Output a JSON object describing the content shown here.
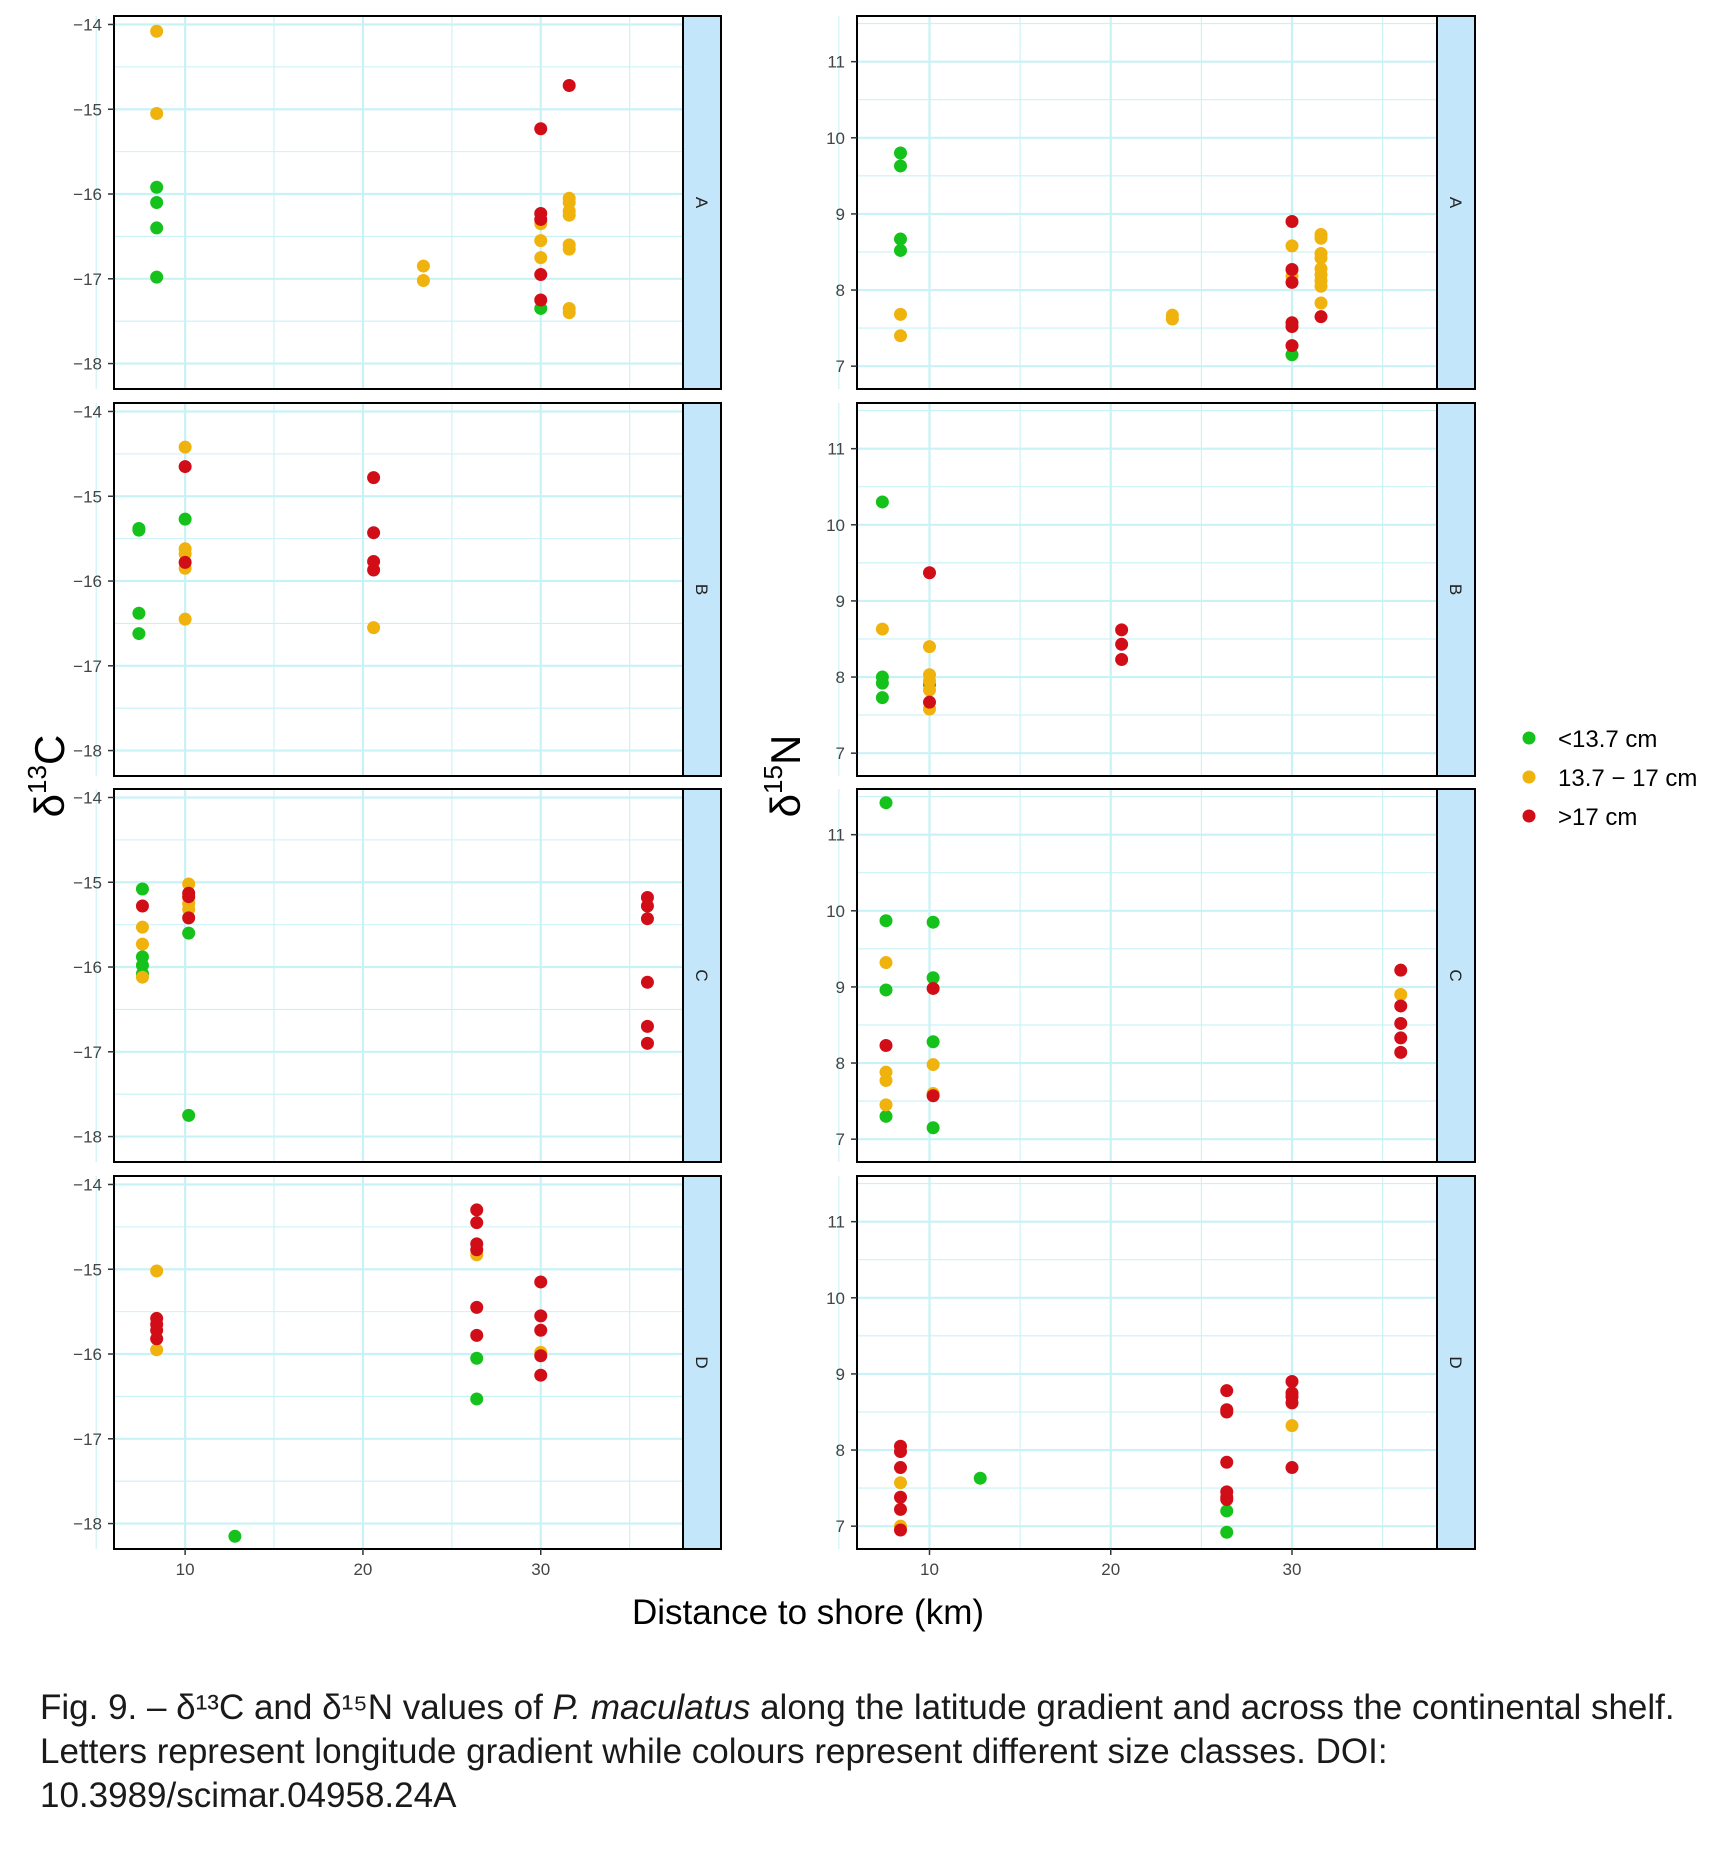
{
  "chart_data": {
    "type": "scatter",
    "xlabel": "Distance to shore (km)",
    "xlim": [
      6,
      38
    ],
    "x_ticks": [
      10,
      20,
      30
    ],
    "grid": true,
    "legend": {
      "placement": "right",
      "entries": [
        {
          "key": "small",
          "label": "<13.7 cm",
          "color": "#15c21b"
        },
        {
          "key": "medium",
          "label": "13.7 − 17 cm",
          "color": "#f0b20d"
        },
        {
          "key": "large",
          "label": ">17 cm",
          "color": "#d10e17"
        }
      ]
    },
    "strip_color": "#c4e6fb",
    "grid_color": "#c9f2f6",
    "columns": [
      {
        "key": "d13c",
        "ylabel_main": "δ",
        "ylabel_sup": "13",
        "ylabel_after": "C",
        "ylim": [
          -18.3,
          -13.9
        ],
        "y_ticks": [
          -14,
          -15,
          -16,
          -17,
          -18
        ],
        "y_tick_labels": [
          "−14",
          "−15",
          "−16",
          "−17",
          "−18"
        ],
        "panels": [
          {
            "label": "A",
            "points": {
              "small": [
                [
                  8.4,
                  -15.92
                ],
                [
                  8.4,
                  -16.1
                ],
                [
                  8.4,
                  -16.4
                ],
                [
                  8.4,
                  -16.98
                ],
                [
                  30,
                  -17.35
                ]
              ],
              "medium": [
                [
                  8.4,
                  -14.08
                ],
                [
                  8.4,
                  -15.05
                ],
                [
                  23.4,
                  -16.85
                ],
                [
                  23.4,
                  -17.02
                ],
                [
                  30,
                  -16.35
                ],
                [
                  30,
                  -16.55
                ],
                [
                  30,
                  -16.75
                ],
                [
                  31.6,
                  -16.05
                ],
                [
                  31.6,
                  -16.1
                ],
                [
                  31.6,
                  -16.2
                ],
                [
                  31.6,
                  -16.25
                ],
                [
                  31.6,
                  -16.6
                ],
                [
                  31.6,
                  -16.65
                ],
                [
                  31.6,
                  -17.35
                ],
                [
                  31.6,
                  -17.4
                ]
              ],
              "large": [
                [
                  31.6,
                  -14.72
                ],
                [
                  30,
                  -15.23
                ],
                [
                  30,
                  -16.23
                ],
                [
                  30,
                  -16.3
                ],
                [
                  30,
                  -16.95
                ],
                [
                  30,
                  -17.25
                ]
              ]
            }
          },
          {
            "label": "B",
            "points": {
              "small": [
                [
                  7.4,
                  -15.38
                ],
                [
                  7.4,
                  -15.4
                ],
                [
                  7.4,
                  -16.38
                ],
                [
                  7.4,
                  -16.62
                ],
                [
                  10,
                  -15.27
                ]
              ],
              "medium": [
                [
                  10,
                  -14.42
                ],
                [
                  10,
                  -15.62
                ],
                [
                  10,
                  -15.68
                ],
                [
                  10,
                  -15.85
                ],
                [
                  10,
                  -16.45
                ],
                [
                  20.6,
                  -16.55
                ]
              ],
              "large": [
                [
                  10,
                  -14.65
                ],
                [
                  10,
                  -15.78
                ],
                [
                  20.6,
                  -14.78
                ],
                [
                  20.6,
                  -15.43
                ],
                [
                  20.6,
                  -15.77
                ],
                [
                  20.6,
                  -15.87
                ]
              ]
            }
          },
          {
            "label": "C",
            "points": {
              "small": [
                [
                  7.6,
                  -15.08
                ],
                [
                  7.6,
                  -15.88
                ],
                [
                  7.6,
                  -15.98
                ],
                [
                  7.6,
                  -16.08
                ],
                [
                  10.2,
                  -15.6
                ],
                [
                  10.2,
                  -17.75
                ]
              ],
              "medium": [
                [
                  7.6,
                  -15.53
                ],
                [
                  7.6,
                  -15.73
                ],
                [
                  7.6,
                  -16.12
                ],
                [
                  10.2,
                  -15.02
                ],
                [
                  10.2,
                  -15.18
                ],
                [
                  10.2,
                  -15.25
                ],
                [
                  10.2,
                  -15.32
                ],
                [
                  36,
                  -16.9
                ]
              ],
              "large": [
                [
                  7.6,
                  -15.28
                ],
                [
                  10.2,
                  -15.13
                ],
                [
                  10.2,
                  -15.17
                ],
                [
                  10.2,
                  -15.42
                ],
                [
                  36,
                  -15.18
                ],
                [
                  36,
                  -15.28
                ],
                [
                  36,
                  -15.43
                ],
                [
                  36,
                  -16.18
                ],
                [
                  36,
                  -16.7
                ],
                [
                  36,
                  -16.9
                ]
              ]
            }
          },
          {
            "label": "D",
            "points": {
              "small": [
                [
                  12.8,
                  -18.15
                ],
                [
                  26.4,
                  -16.05
                ],
                [
                  26.4,
                  -16.53
                ]
              ],
              "medium": [
                [
                  8.4,
                  -15.02
                ],
                [
                  8.4,
                  -15.95
                ],
                [
                  26.4,
                  -14.83
                ],
                [
                  30,
                  -15.98
                ]
              ],
              "large": [
                [
                  8.4,
                  -15.58
                ],
                [
                  8.4,
                  -15.65
                ],
                [
                  8.4,
                  -15.72
                ],
                [
                  8.4,
                  -15.82
                ],
                [
                  26.4,
                  -14.3
                ],
                [
                  26.4,
                  -14.45
                ],
                [
                  26.4,
                  -14.7
                ],
                [
                  26.4,
                  -14.77
                ],
                [
                  26.4,
                  -15.45
                ],
                [
                  26.4,
                  -15.78
                ],
                [
                  30,
                  -15.15
                ],
                [
                  30,
                  -15.55
                ],
                [
                  30,
                  -15.72
                ],
                [
                  30,
                  -16.02
                ],
                [
                  30,
                  -16.25
                ]
              ]
            }
          }
        ]
      },
      {
        "key": "d15n",
        "ylabel_main": "δ",
        "ylabel_sup": "15",
        "ylabel_after": "N",
        "ylim": [
          6.7,
          11.6
        ],
        "y_ticks": [
          7,
          8,
          9,
          10,
          11
        ],
        "y_tick_labels": [
          "7",
          "8",
          "9",
          "10",
          "11"
        ],
        "panels": [
          {
            "label": "A",
            "points": {
              "small": [
                [
                  8.4,
                  9.8
                ],
                [
                  8.4,
                  9.63
                ],
                [
                  8.4,
                  8.67
                ],
                [
                  8.4,
                  8.52
                ],
                [
                  30,
                  7.15
                ]
              ],
              "medium": [
                [
                  8.4,
                  7.68
                ],
                [
                  8.4,
                  7.4
                ],
                [
                  23.4,
                  7.67
                ],
                [
                  23.4,
                  7.62
                ],
                [
                  30,
                  8.58
                ],
                [
                  30,
                  8.18
                ],
                [
                  31.6,
                  8.73
                ],
                [
                  31.6,
                  8.68
                ],
                [
                  31.6,
                  8.48
                ],
                [
                  31.6,
                  8.42
                ],
                [
                  31.6,
                  8.28
                ],
                [
                  31.6,
                  8.2
                ],
                [
                  31.6,
                  8.12
                ],
                [
                  31.6,
                  8.05
                ],
                [
                  31.6,
                  7.83
                ]
              ],
              "large": [
                [
                  30,
                  8.9
                ],
                [
                  30,
                  8.27
                ],
                [
                  30,
                  8.1
                ],
                [
                  30,
                  7.57
                ],
                [
                  30,
                  7.52
                ],
                [
                  30,
                  7.27
                ],
                [
                  31.6,
                  7.65
                ]
              ]
            }
          },
          {
            "label": "B",
            "points": {
              "small": [
                [
                  7.4,
                  10.3
                ],
                [
                  7.4,
                  8.0
                ],
                [
                  7.4,
                  7.92
                ],
                [
                  7.4,
                  7.73
                ],
                [
                  10,
                  7.9
                ]
              ],
              "medium": [
                [
                  7.4,
                  8.63
                ],
                [
                  10,
                  8.4
                ],
                [
                  10,
                  8.03
                ],
                [
                  10,
                  7.95
                ],
                [
                  10,
                  7.83
                ],
                [
                  10,
                  7.58
                ]
              ],
              "large": [
                [
                  10,
                  9.37
                ],
                [
                  10,
                  7.67
                ],
                [
                  20.6,
                  8.62
                ],
                [
                  20.6,
                  8.43
                ],
                [
                  20.6,
                  8.23
                ]
              ]
            }
          },
          {
            "label": "C",
            "points": {
              "small": [
                [
                  7.6,
                  11.42
                ],
                [
                  7.6,
                  9.87
                ],
                [
                  7.6,
                  8.96
                ],
                [
                  7.6,
                  7.3
                ],
                [
                  10.2,
                  9.85
                ],
                [
                  10.2,
                  9.12
                ],
                [
                  10.2,
                  8.28
                ],
                [
                  10.2,
                  7.15
                ]
              ],
              "medium": [
                [
                  7.6,
                  9.32
                ],
                [
                  7.6,
                  7.88
                ],
                [
                  7.6,
                  7.77
                ],
                [
                  7.6,
                  7.45
                ],
                [
                  10.2,
                  7.98
                ],
                [
                  10.2,
                  7.6
                ],
                [
                  36,
                  8.9
                ]
              ],
              "large": [
                [
                  7.6,
                  8.23
                ],
                [
                  10.2,
                  8.98
                ],
                [
                  10.2,
                  7.57
                ],
                [
                  36,
                  9.22
                ],
                [
                  36,
                  8.75
                ],
                [
                  36,
                  8.52
                ],
                [
                  36,
                  8.33
                ],
                [
                  36,
                  8.14
                ]
              ]
            }
          },
          {
            "label": "D",
            "points": {
              "small": [
                [
                  12.8,
                  7.63
                ],
                [
                  26.4,
                  7.2
                ],
                [
                  26.4,
                  6.92
                ]
              ],
              "medium": [
                [
                  8.4,
                  7.57
                ],
                [
                  8.4,
                  7.0
                ],
                [
                  30,
                  8.32
                ]
              ],
              "large": [
                [
                  8.4,
                  8.05
                ],
                [
                  8.4,
                  7.98
                ],
                [
                  8.4,
                  7.77
                ],
                [
                  8.4,
                  7.38
                ],
                [
                  8.4,
                  7.22
                ],
                [
                  8.4,
                  6.95
                ],
                [
                  26.4,
                  8.78
                ],
                [
                  26.4,
                  8.53
                ],
                [
                  26.4,
                  8.5
                ],
                [
                  26.4,
                  7.84
                ],
                [
                  26.4,
                  7.45
                ],
                [
                  26.4,
                  7.38
                ],
                [
                  26.4,
                  7.35
                ],
                [
                  30,
                  8.9
                ],
                [
                  30,
                  8.75
                ],
                [
                  30,
                  8.7
                ],
                [
                  30,
                  8.62
                ],
                [
                  30,
                  7.77
                ]
              ]
            }
          }
        ]
      }
    ]
  },
  "caption": {
    "prefix": "Fig. 9. – δ¹³C and δ¹⁵N values of ",
    "species": "P. maculatus",
    "suffix": " along the latitude gradient and across the continental shelf. Letters represent longitude gradient while colours represent different size classes. DOI: 10.3989/scimar.04958.24A"
  }
}
